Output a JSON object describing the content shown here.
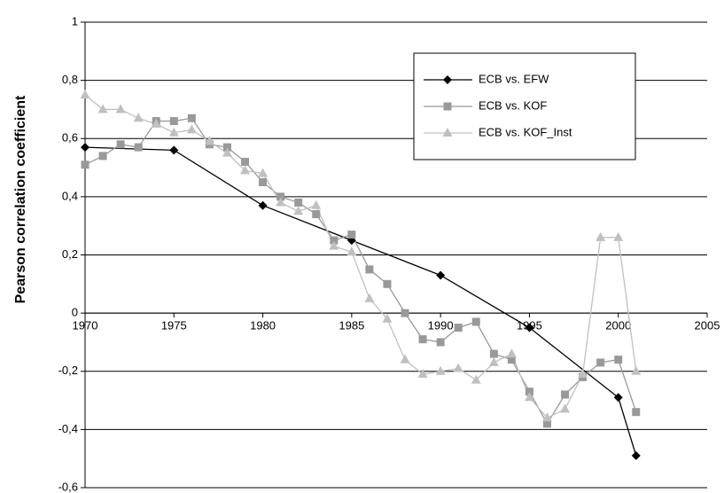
{
  "chart_data": {
    "type": "line",
    "y_label": "Pearson correlation coefficient",
    "xlim": [
      1970,
      2005
    ],
    "xticks": [
      1970,
      1975,
      1980,
      1985,
      1990,
      1995,
      2000,
      2005
    ],
    "ylim": [
      -0.6,
      1
    ],
    "yticks": [
      {
        "value": -0.6,
        "label": "-0,6"
      },
      {
        "value": -0.4,
        "label": "-0,4"
      },
      {
        "value": -0.2,
        "label": "-0,2"
      },
      0,
      {
        "value": 0.2,
        "label": "0,2"
      },
      {
        "value": 0.4,
        "label": "0,4"
      },
      {
        "value": 0.6,
        "label": "0,6"
      },
      {
        "value": 0.8,
        "label": "0,8"
      },
      1
    ],
    "grid": true,
    "series": [
      {
        "name": "ECB vs. EFW",
        "color": "#000000",
        "marker": "diamond",
        "x": [
          1970,
          1975,
          1980,
          1985,
          1990,
          1995,
          2000,
          2001
        ],
        "values": [
          0.57,
          0.56,
          0.37,
          0.25,
          0.13,
          -0.05,
          -0.29,
          -0.49
        ]
      },
      {
        "name": "ECB vs. KOF",
        "color": "#999999",
        "marker": "square",
        "x": [
          1970,
          1971,
          1972,
          1973,
          1974,
          1975,
          1976,
          1977,
          1978,
          1979,
          1980,
          1981,
          1982,
          1983,
          1984,
          1985,
          1986,
          1987,
          1988,
          1989,
          1990,
          1991,
          1992,
          1993,
          1994,
          1995,
          1996,
          1997,
          1998,
          1999,
          2000,
          2001
        ],
        "values": [
          0.51,
          0.54,
          0.58,
          0.57,
          0.66,
          0.66,
          0.67,
          0.58,
          0.57,
          0.52,
          0.45,
          0.4,
          0.38,
          0.34,
          0.25,
          0.27,
          0.15,
          0.1,
          0.0,
          -0.09,
          -0.1,
          -0.05,
          -0.03,
          -0.14,
          -0.16,
          -0.27,
          -0.38,
          -0.28,
          -0.22,
          -0.17,
          -0.16,
          -0.34
        ]
      },
      {
        "name": "ECB vs. KOF_Inst",
        "color": "#c0c0c0",
        "marker": "triangle",
        "x": [
          1970,
          1971,
          1972,
          1973,
          1974,
          1975,
          1976,
          1977,
          1978,
          1979,
          1980,
          1981,
          1982,
          1983,
          1984,
          1985,
          1986,
          1987,
          1988,
          1989,
          1990,
          1991,
          1992,
          1993,
          1994,
          1995,
          1996,
          1997,
          1998,
          1999,
          2000,
          2001
        ],
        "values": [
          0.75,
          0.7,
          0.7,
          0.67,
          0.65,
          0.62,
          0.63,
          0.59,
          0.55,
          0.49,
          0.48,
          0.38,
          0.35,
          0.37,
          0.23,
          0.21,
          0.05,
          -0.02,
          -0.16,
          -0.21,
          -0.2,
          -0.19,
          -0.23,
          -0.17,
          -0.14,
          -0.29,
          -0.36,
          -0.33,
          -0.21,
          0.26,
          0.26,
          -0.2
        ]
      }
    ]
  }
}
